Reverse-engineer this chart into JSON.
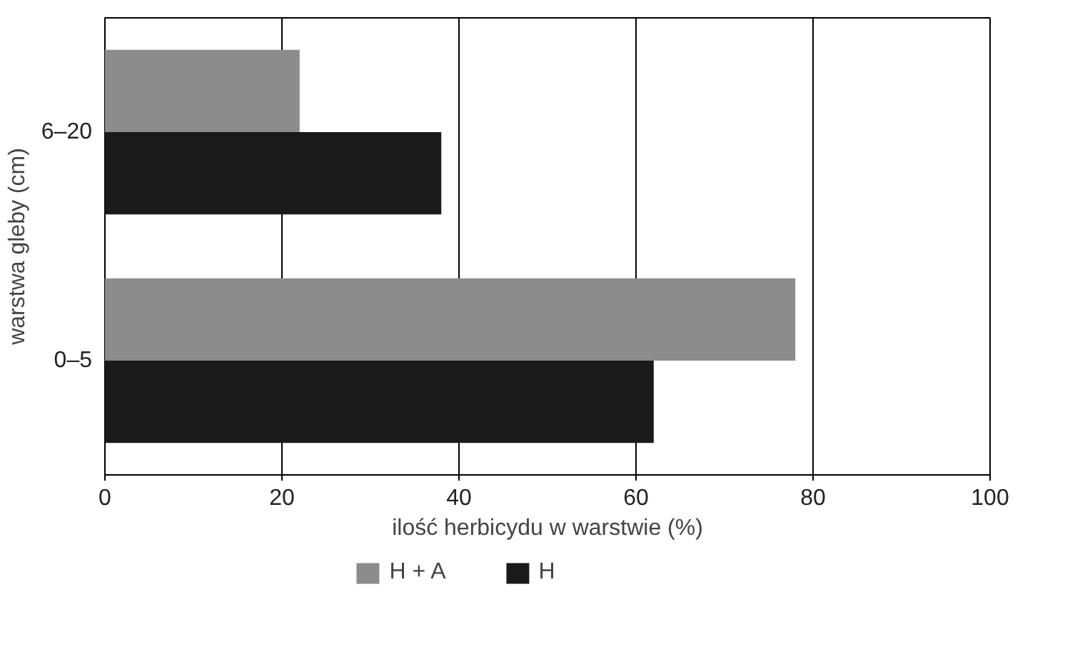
{
  "chart_data": {
    "type": "bar",
    "orientation": "horizontal",
    "categories": [
      "6–20",
      "0–5"
    ],
    "series": [
      {
        "name": "H + A",
        "color": "#8c8c8c",
        "values": [
          22,
          78
        ]
      },
      {
        "name": "H",
        "color": "#1a1a1a",
        "values": [
          38,
          62
        ]
      }
    ],
    "xlabel": "ilość herbicydu w warstwie (%)",
    "ylabel": "warstwa gleby (cm)",
    "xlim": [
      0,
      100
    ],
    "xticks": [
      0,
      20,
      40,
      60,
      80,
      100
    ],
    "grid": "x",
    "legend": "bottom"
  }
}
